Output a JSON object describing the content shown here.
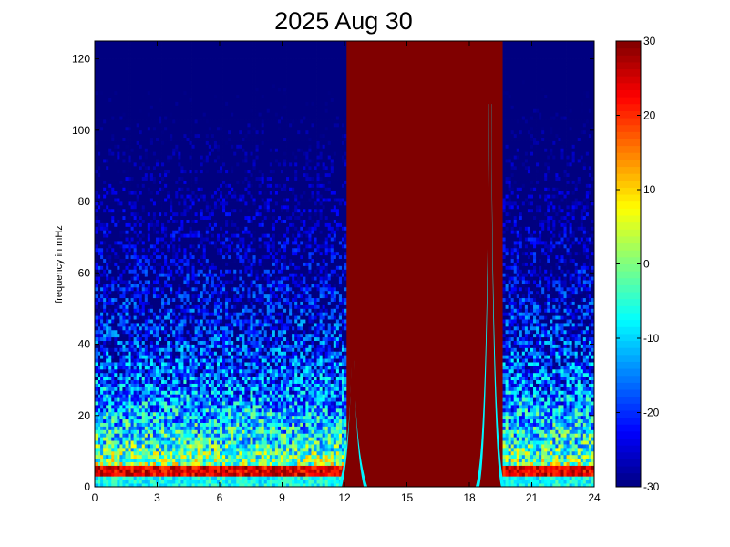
{
  "chart_data": {
    "type": "heatmap",
    "title": "2025 Aug 30",
    "xlabel": "",
    "ylabel": "frequency in mHz",
    "xlim": [
      0,
      24
    ],
    "ylim": [
      0,
      125
    ],
    "x_ticks": [
      "0",
      "3",
      "6",
      "9",
      "12",
      "15",
      "18",
      "21",
      "24"
    ],
    "y_ticks": [
      "0",
      "20",
      "40",
      "60",
      "80",
      "100",
      "120"
    ],
    "colorbar": {
      "colormap": "jet",
      "range": [
        -30,
        30
      ],
      "ticks": [
        "-30",
        "-20",
        "-10",
        "0",
        "10",
        "20",
        "30"
      ]
    },
    "saturated_interval": {
      "x_start": 12.1,
      "x_end": 19.6,
      "value": 30
    },
    "spikes": [
      {
        "x": 12.4,
        "peak_freq": 43
      },
      {
        "x": 19.0,
        "peak_freq": 115
      }
    ],
    "grid": false
  }
}
